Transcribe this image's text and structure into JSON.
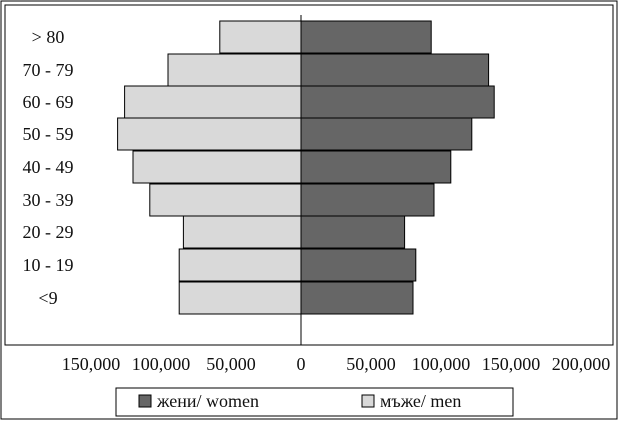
{
  "chart_data": {
    "type": "bar",
    "orientation": "horizontal-population-pyramid",
    "categories": [
      "<9",
      "10 - 19",
      "20 - 29",
      "30 - 39",
      "40 - 49",
      "50 - 59",
      "60 - 69",
      "70 - 79",
      "> 80"
    ],
    "series": [
      {
        "name": "мъже/ men",
        "color": "#d9d9d9",
        "direction": "left",
        "values": [
          87000,
          87000,
          84000,
          108000,
          120000,
          131000,
          126000,
          95000,
          58000
        ]
      },
      {
        "name": "жени/ women",
        "color": "#666666",
        "direction": "right",
        "values": [
          80000,
          82000,
          74000,
          95000,
          107000,
          122000,
          138000,
          134000,
          93000
        ]
      }
    ],
    "x_tick_labels": [
      "150,000",
      "100,000",
      "50,000",
      "0",
      "50,000",
      "100,000",
      "150,000",
      "200,000"
    ],
    "x_tick_values": [
      -150000,
      -100000,
      -50000,
      0,
      50000,
      100000,
      150000,
      200000
    ],
    "xlim": [
      -150000,
      200000
    ],
    "legend": {
      "placement": "bottom",
      "items": [
        {
          "label": "жени/ women",
          "color": "#666666"
        },
        {
          "label": "мъже/ men",
          "color": "#d9d9d9"
        }
      ]
    },
    "grid": false
  }
}
